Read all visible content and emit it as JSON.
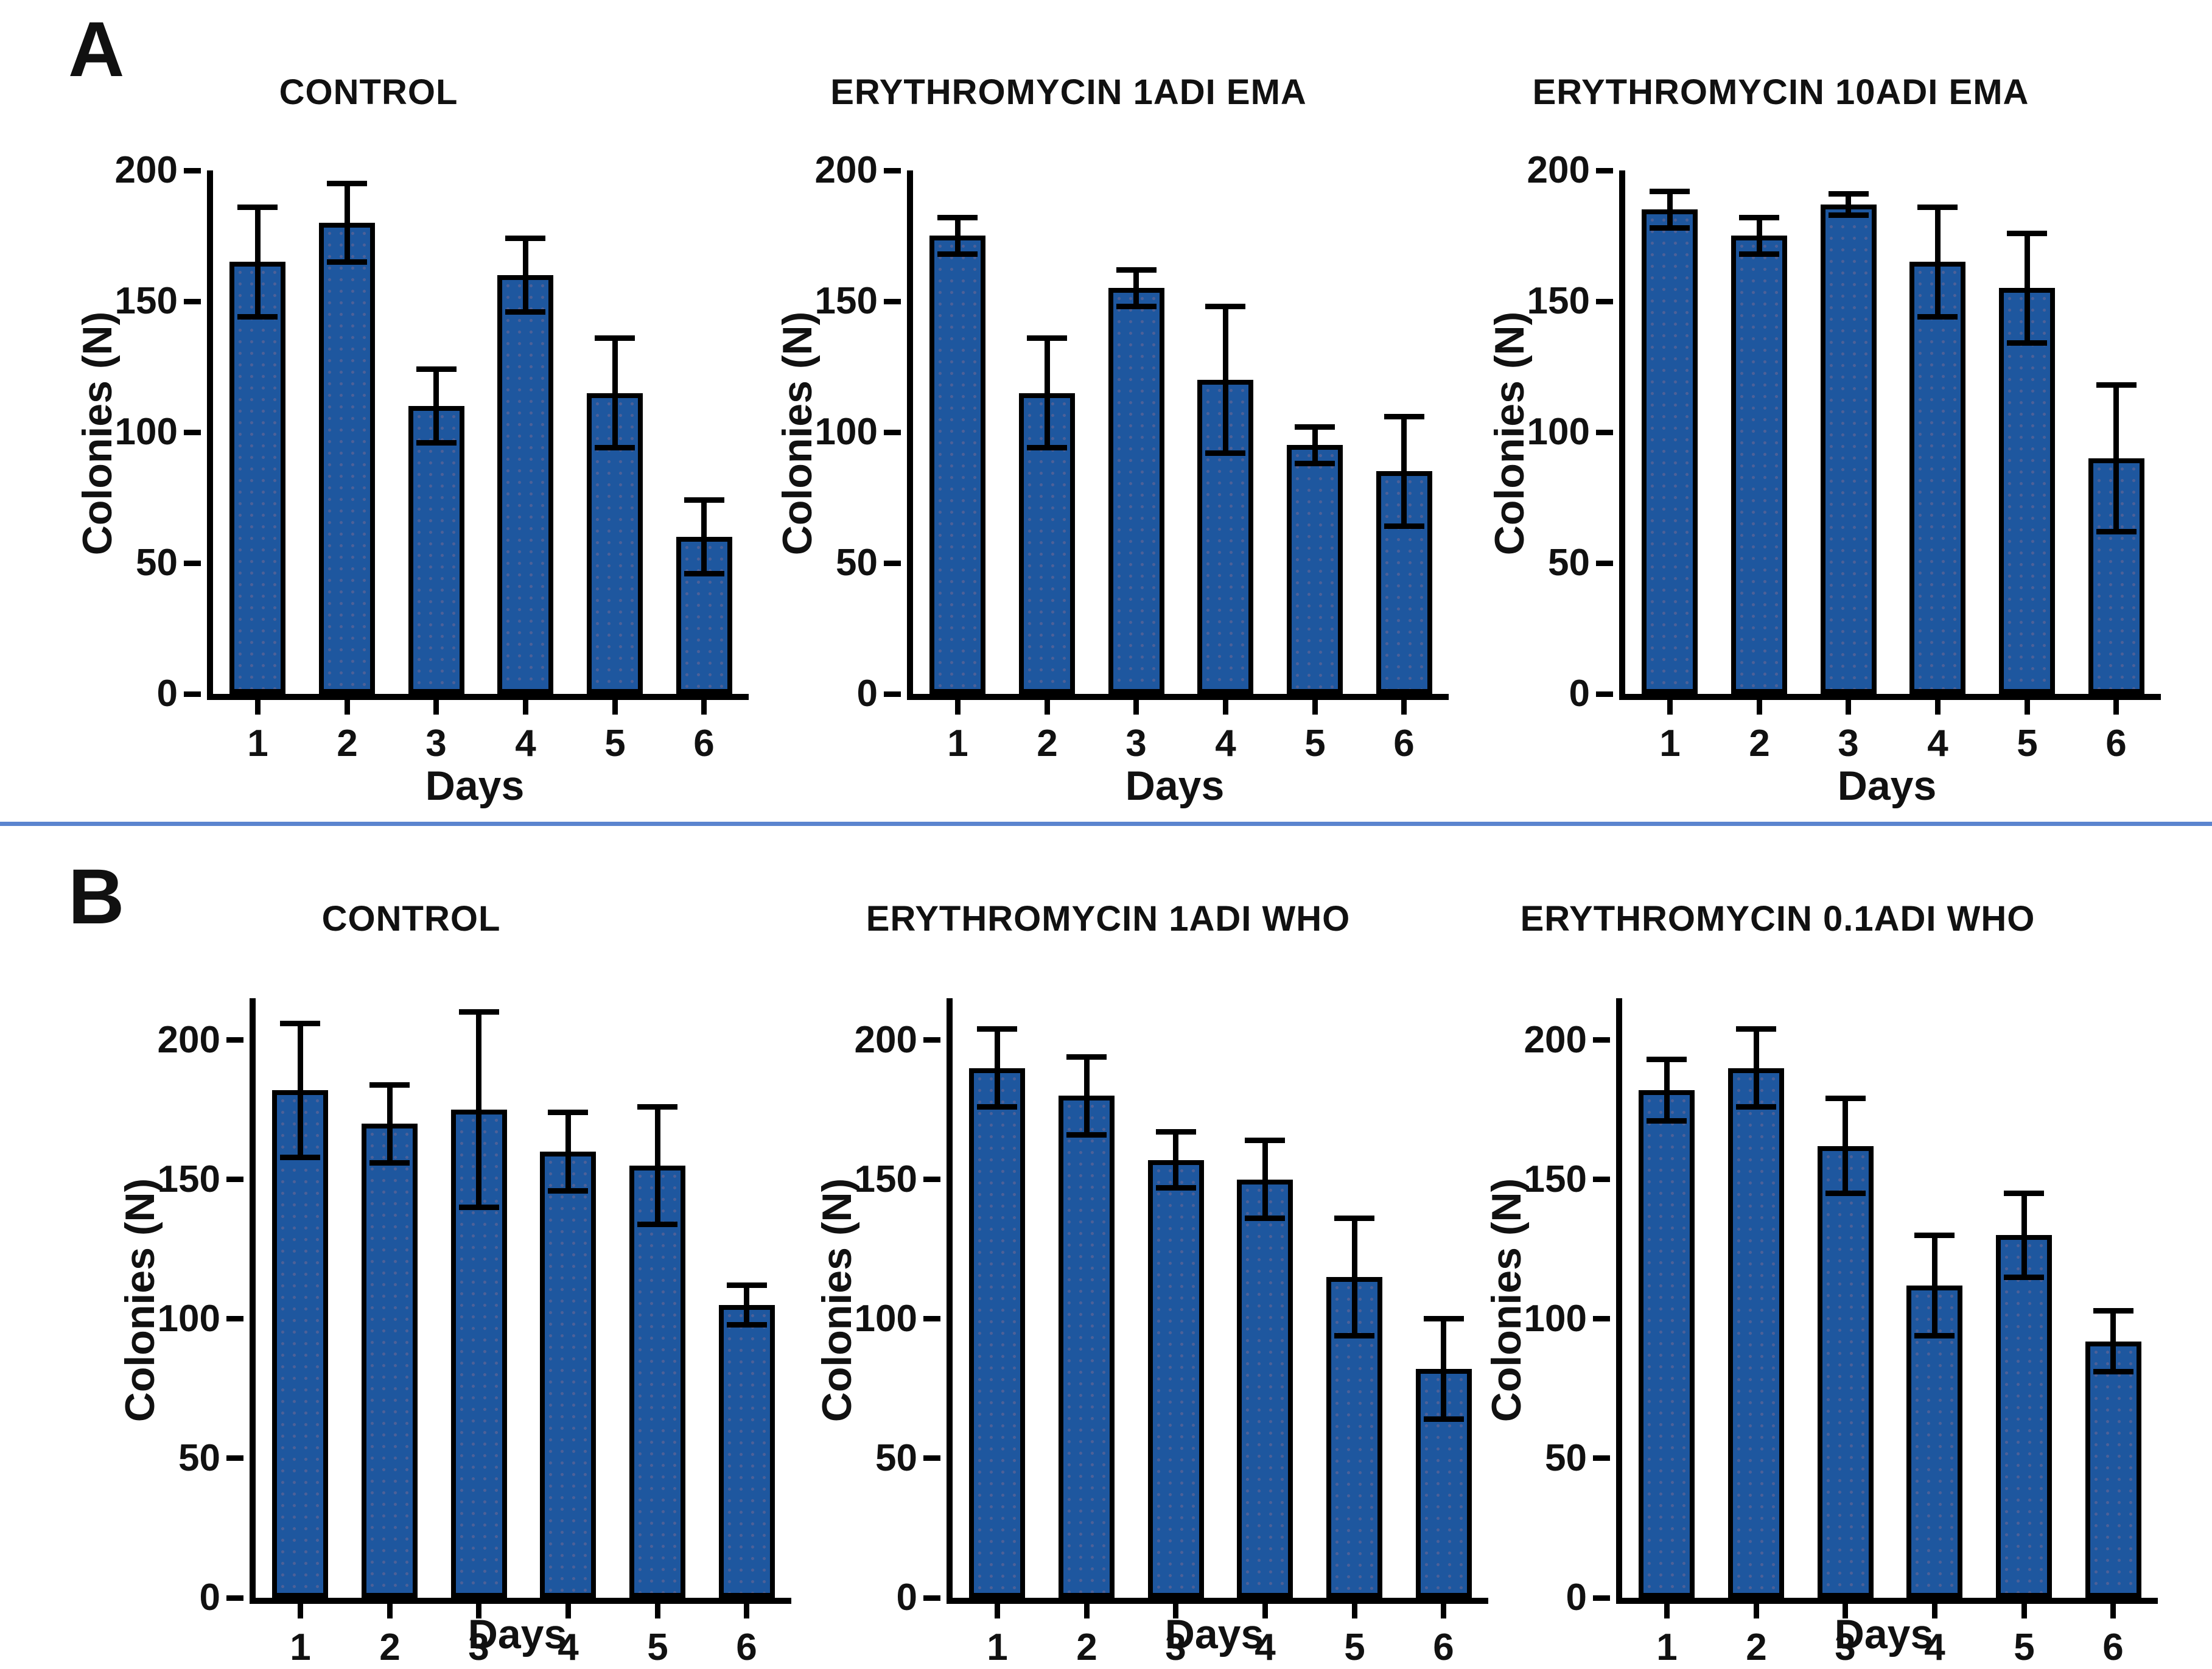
{
  "figure": {
    "background": "#ffffff",
    "bar_color": "#1e579f",
    "bar_border_color": "#000000",
    "divider_color": "#5b84cf",
    "panels": [
      {
        "label": "A"
      },
      {
        "label": "B"
      }
    ]
  },
  "chart_data": [
    {
      "panel": "A",
      "type": "bar",
      "title": "CONTROL",
      "xlabel": "Days",
      "ylabel": "Colonies (N)",
      "categories": [
        "1",
        "2",
        "3",
        "4",
        "5",
        "6"
      ],
      "values": [
        165,
        180,
        110,
        160,
        115,
        60
      ],
      "errors": [
        21,
        15,
        14,
        14,
        21,
        14
      ],
      "yticks": [
        0,
        50,
        100,
        150,
        200
      ],
      "ylim": [
        0,
        200
      ],
      "grid": false,
      "legend": "none"
    },
    {
      "panel": "A",
      "type": "bar",
      "title": "ERYTHROMYCIN 1ADI EMA",
      "xlabel": "Days",
      "ylabel": "Colonies (N)",
      "categories": [
        "1",
        "2",
        "3",
        "4",
        "5",
        "6"
      ],
      "values": [
        175,
        115,
        155,
        120,
        95,
        85
      ],
      "errors": [
        7,
        21,
        7,
        28,
        7,
        21
      ],
      "yticks": [
        0,
        50,
        100,
        150,
        200
      ],
      "ylim": [
        0,
        200
      ],
      "grid": false,
      "legend": "none"
    },
    {
      "panel": "A",
      "type": "bar",
      "title": "ERYTHROMYCIN 10ADI EMA",
      "xlabel": "Days",
      "ylabel": "Colonies (N)",
      "categories": [
        "1",
        "2",
        "3",
        "4",
        "5",
        "6"
      ],
      "values": [
        185,
        175,
        187,
        165,
        155,
        90
      ],
      "errors": [
        7,
        7,
        4,
        21,
        21,
        28
      ],
      "yticks": [
        0,
        50,
        100,
        150,
        200
      ],
      "ylim": [
        0,
        200
      ],
      "grid": false,
      "legend": "none"
    },
    {
      "panel": "B",
      "type": "bar",
      "title": "CONTROL",
      "xlabel": "Days",
      "ylabel": "Colonies (N)",
      "categories": [
        "1",
        "2",
        "3",
        "4",
        "5",
        "6"
      ],
      "values": [
        182,
        170,
        175,
        160,
        155,
        105
      ],
      "errors": [
        24,
        14,
        35,
        14,
        21,
        7
      ],
      "yticks": [
        0,
        50,
        100,
        150,
        200
      ],
      "ylim": [
        0,
        215
      ],
      "grid": false,
      "legend": "none"
    },
    {
      "panel": "B",
      "type": "bar",
      "title": "ERYTHROMYCIN 1ADI WHO",
      "xlabel": "Days",
      "ylabel": "Colonies (N)",
      "categories": [
        "1",
        "2",
        "3",
        "4",
        "5",
        "6"
      ],
      "values": [
        190,
        180,
        157,
        150,
        115,
        82
      ],
      "errors": [
        14,
        14,
        10,
        14,
        21,
        18
      ],
      "yticks": [
        0,
        50,
        100,
        150,
        200
      ],
      "ylim": [
        0,
        215
      ],
      "grid": false,
      "legend": "none"
    },
    {
      "panel": "B",
      "type": "bar",
      "title": "ERYTHROMYCIN 0.1ADI WHO",
      "xlabel": "Days",
      "ylabel": "Colonies (N)",
      "categories": [
        "1",
        "2",
        "3",
        "4",
        "5",
        "6"
      ],
      "values": [
        182,
        190,
        162,
        112,
        130,
        92
      ],
      "errors": [
        11,
        14,
        17,
        18,
        15,
        11
      ],
      "yticks": [
        0,
        50,
        100,
        150,
        200
      ],
      "ylim": [
        0,
        215
      ],
      "grid": false,
      "legend": "none"
    }
  ]
}
